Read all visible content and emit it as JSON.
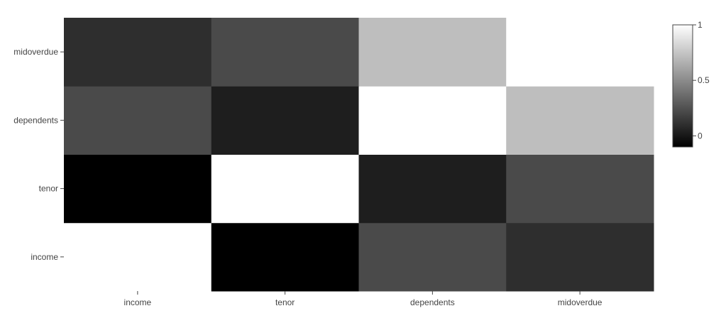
{
  "chart_data": {
    "type": "heatmap",
    "x_categories": [
      "income",
      "tenor",
      "dependents",
      "midoverdue"
    ],
    "y_categories": [
      "income",
      "tenor",
      "dependents",
      "midoverdue"
    ],
    "z": [
      [
        1.0,
        -0.12,
        0.22,
        0.1
      ],
      [
        -0.12,
        1.0,
        0.03,
        0.22
      ],
      [
        0.22,
        0.03,
        1.0,
        0.72
      ],
      [
        0.1,
        0.22,
        0.72,
        1.0
      ]
    ],
    "colorscale": {
      "min": -0.1,
      "max": 1.0,
      "low_color": "#000000",
      "high_color": "#ffffff",
      "ticks": [
        0,
        0.5,
        1
      ],
      "tick_labels": [
        "0",
        "0.5",
        "1"
      ]
    },
    "title": "",
    "xlabel": "",
    "ylabel": "",
    "grid": false,
    "colorbar_placement": "top-right"
  }
}
